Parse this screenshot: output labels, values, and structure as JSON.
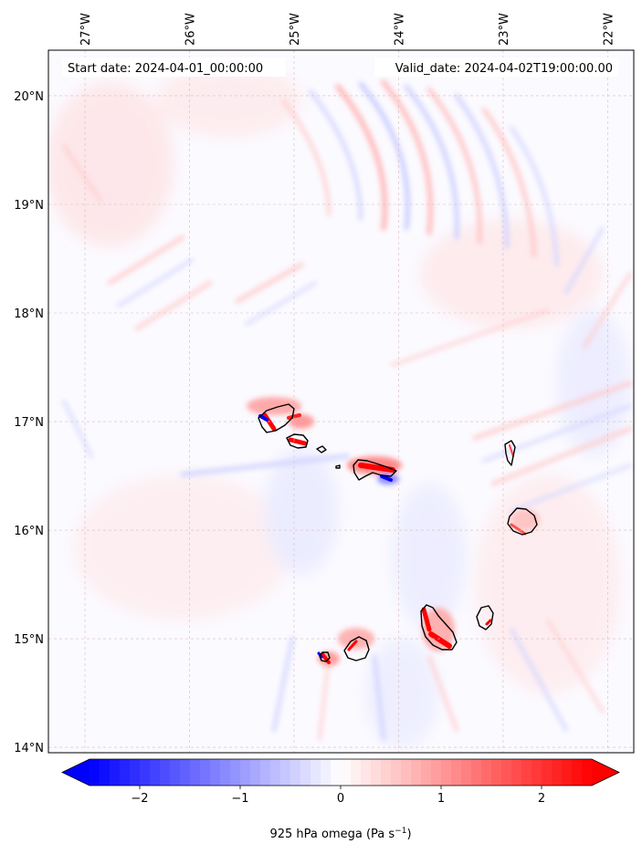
{
  "map": {
    "start_date": "Start date: 2024-04-01_00:00:00",
    "valid_date": "Valid_date: 2024-04-02T19:00:00.00",
    "lon_labels": [
      "27°W",
      "26°W",
      "25°W",
      "24°W",
      "23°W",
      "22°W"
    ],
    "lat_labels": [
      "20°N",
      "19°N",
      "18°N",
      "17°N",
      "16°N",
      "15°N",
      "14°N"
    ],
    "lon_values": [
      -27,
      -26,
      -25,
      -24,
      -23,
      -22
    ],
    "lat_values": [
      20,
      19,
      18,
      17,
      16,
      15,
      14
    ],
    "extent": {
      "lon_min": -27.35,
      "lon_max": -21.75,
      "lat_min": 13.95,
      "lat_max": 20.42
    },
    "colors": {
      "negative": "#0000ff",
      "zero": "#ffffff",
      "positive": "#ff0000",
      "grid": "#d9bcbc"
    }
  },
  "colorbar": {
    "label": "925 hPa omega (Pa s",
    "label_sup": "−1",
    "label_end": ")",
    "ticks": [
      "−2",
      "−1",
      "0",
      "1",
      "2"
    ],
    "tick_values": [
      -2,
      -1,
      0,
      1,
      2
    ],
    "range": [
      -2.5,
      2.5
    ]
  }
}
